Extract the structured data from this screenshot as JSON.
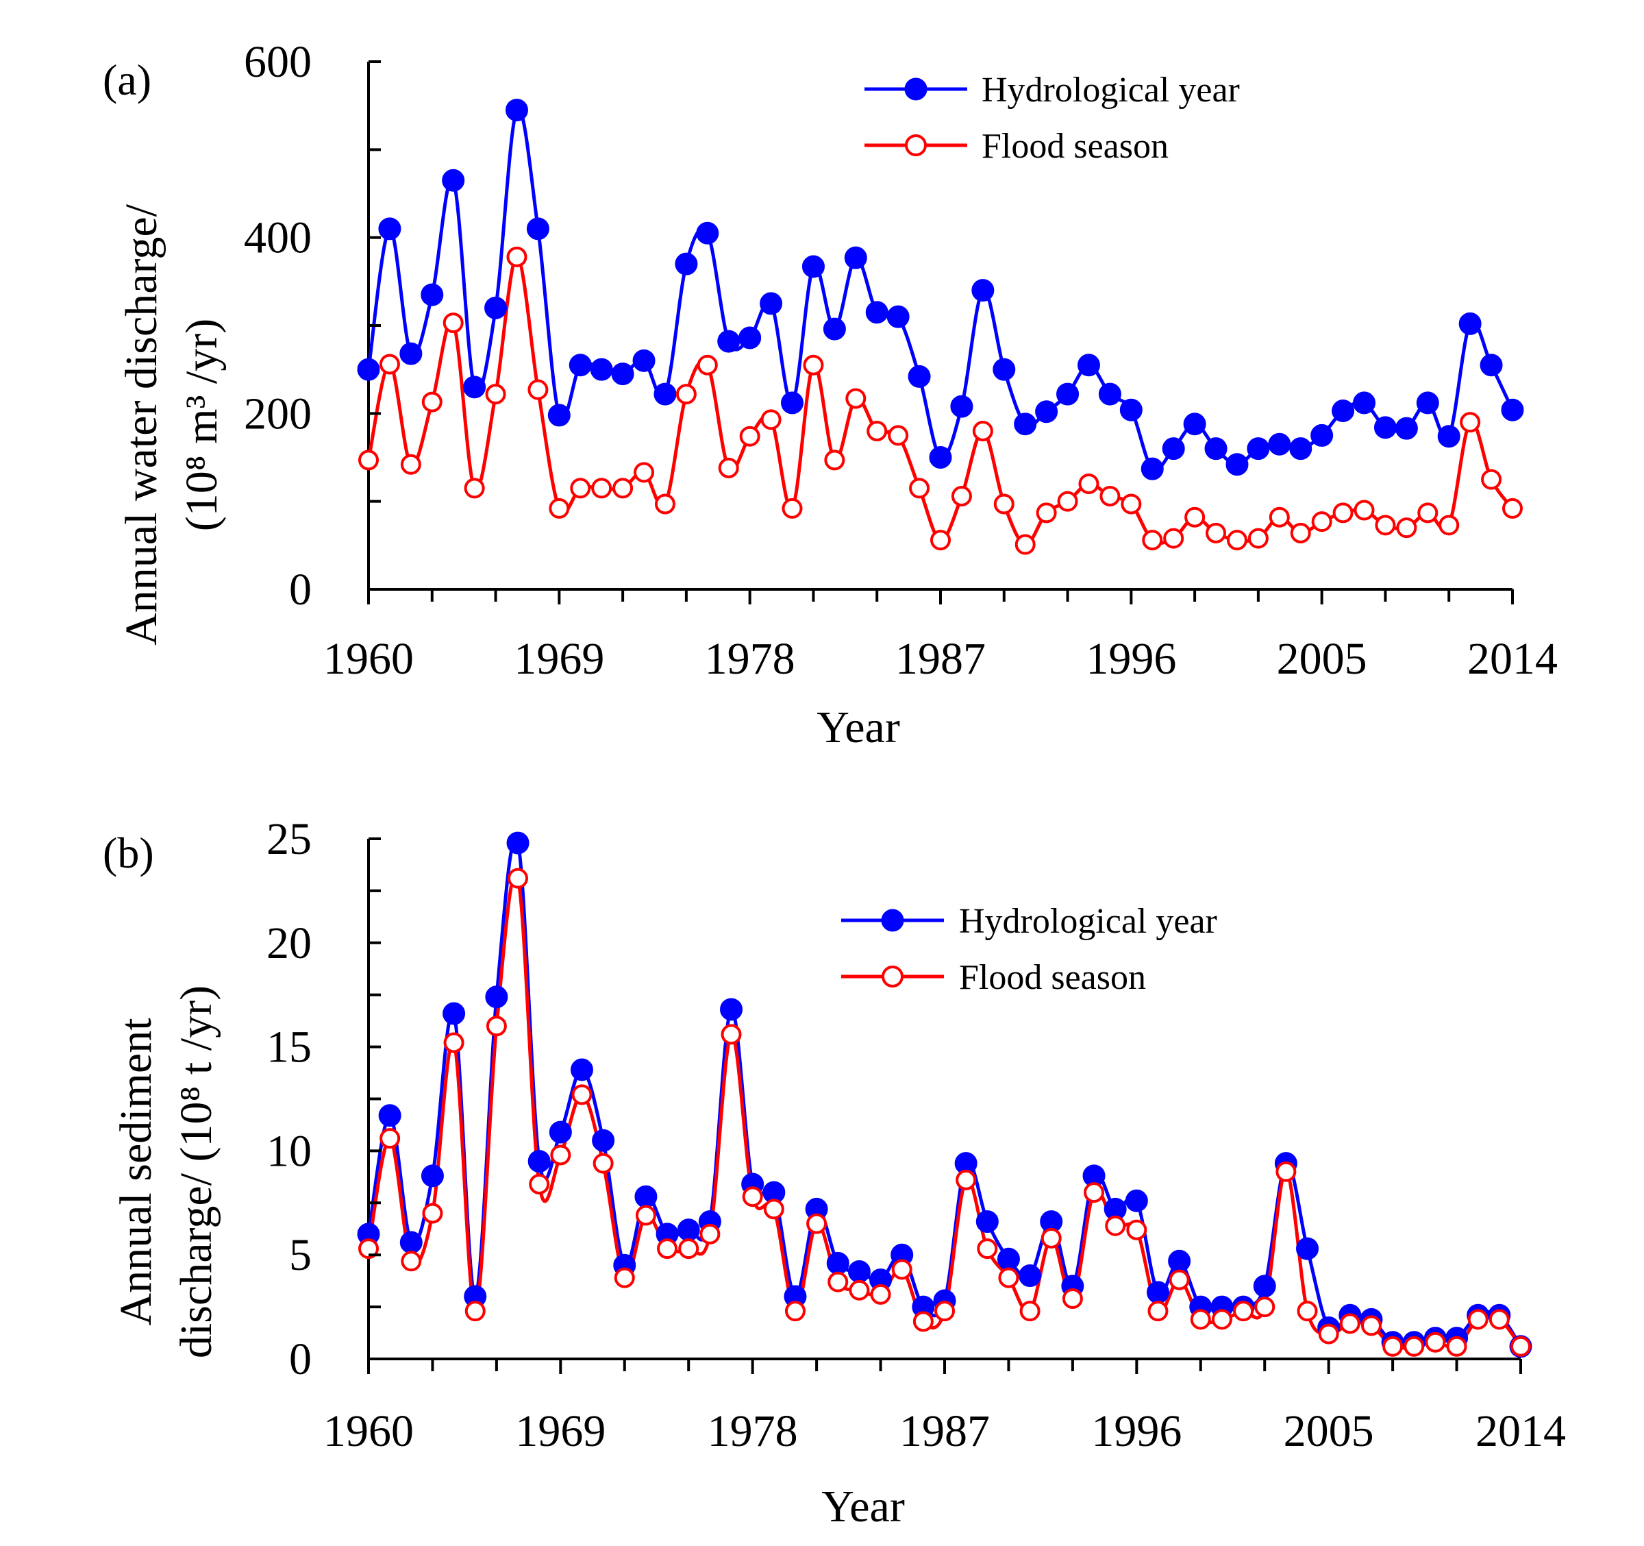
{
  "chart_data": [
    {
      "type": "line",
      "panel_label": "(a)",
      "title": "",
      "xlabel": "Year",
      "ylabel_line1": "Annual water discharge/",
      "ylabel_line2": "(10⁸ m³ /yr)",
      "ylim": [
        0,
        600
      ],
      "yticks": [
        0,
        200,
        400,
        600
      ],
      "xlim": [
        1960,
        2014
      ],
      "xticks": [
        1960,
        1969,
        1978,
        1987,
        1996,
        2005,
        2014
      ],
      "legend_position": "top-right",
      "x": [
        1960,
        1961,
        1962,
        1963,
        1964,
        1965,
        1966,
        1967,
        1968,
        1969,
        1970,
        1971,
        1972,
        1973,
        1974,
        1975,
        1976,
        1977,
        1978,
        1979,
        1980,
        1981,
        1982,
        1983,
        1984,
        1985,
        1986,
        1987,
        1988,
        1989,
        1990,
        1991,
        1992,
        1993,
        1994,
        1995,
        1996,
        1997,
        1998,
        1999,
        2000,
        2001,
        2002,
        2003,
        2004,
        2005,
        2006,
        2007,
        2008,
        2009,
        2010,
        2011,
        2012,
        2013,
        2014
      ],
      "series": [
        {
          "name": "Hydrological year",
          "color": "#0000ff",
          "marker": "filled-circle",
          "values": [
            250,
            410,
            268,
            335,
            465,
            230,
            320,
            545,
            410,
            198,
            255,
            250,
            245,
            260,
            222,
            370,
            405,
            282,
            286,
            325,
            212,
            367,
            296,
            377,
            315,
            310,
            242,
            150,
            208,
            340,
            250,
            188,
            202,
            222,
            255,
            222,
            204,
            137,
            160,
            188,
            160,
            142,
            160,
            165,
            160,
            175,
            203,
            212,
            184,
            183,
            212,
            174,
            302,
            255,
            204
          ]
        },
        {
          "name": "Flood season",
          "color": "#ff0000",
          "marker": "open-circle",
          "values": [
            147,
            256,
            142,
            213,
            303,
            115,
            222,
            378,
            227,
            92,
            115,
            115,
            115,
            133,
            97,
            222,
            255,
            138,
            174,
            193,
            92,
            255,
            147,
            217,
            180,
            175,
            115,
            56,
            106,
            180,
            97,
            51,
            87,
            100,
            120,
            106,
            97,
            56,
            58,
            82,
            64,
            56,
            58,
            82,
            64,
            77,
            87,
            90,
            73,
            70,
            87,
            73,
            190,
            125,
            92
          ]
        }
      ]
    },
    {
      "type": "line",
      "panel_label": "(b)",
      "title": "",
      "xlabel": "Year",
      "ylabel_line1": "Annual sediment",
      "ylabel_line2": "discharge/ (10⁸ t /yr)",
      "ylim": [
        0,
        25
      ],
      "yticks": [
        0,
        5,
        10,
        15,
        20,
        25
      ],
      "xlim": [
        1960,
        2014
      ],
      "xticks": [
        1960,
        1969,
        1978,
        1987,
        1996,
        2005,
        2014
      ],
      "legend_position": "top-right",
      "x": [
        1960,
        1961,
        1962,
        1963,
        1964,
        1965,
        1966,
        1967,
        1968,
        1969,
        1970,
        1971,
        1972,
        1973,
        1974,
        1975,
        1976,
        1977,
        1978,
        1979,
        1980,
        1981,
        1982,
        1983,
        1984,
        1985,
        1986,
        1987,
        1988,
        1989,
        1990,
        1991,
        1992,
        1993,
        1994,
        1995,
        1996,
        1997,
        1998,
        1999,
        2000,
        2001,
        2002,
        2003,
        2004,
        2005,
        2006,
        2007,
        2008,
        2009,
        2010,
        2011,
        2012,
        2013,
        2014
      ],
      "series": [
        {
          "name": "Hydrological year",
          "color": "#0000ff",
          "marker": "filled-circle",
          "values": [
            6.0,
            11.7,
            5.6,
            8.8,
            16.6,
            3.0,
            17.4,
            24.8,
            9.5,
            10.9,
            13.9,
            10.5,
            4.5,
            7.8,
            6.0,
            6.2,
            6.6,
            16.8,
            8.4,
            8.0,
            3.0,
            7.2,
            4.6,
            4.2,
            3.8,
            5.0,
            2.5,
            2.8,
            9.4,
            6.6,
            4.8,
            4.0,
            6.6,
            3.5,
            8.8,
            7.2,
            7.6,
            3.2,
            4.7,
            2.5,
            2.5,
            2.5,
            3.5,
            9.4,
            5.3,
            1.5,
            2.1,
            1.9,
            0.8,
            0.8,
            1.0,
            1.0,
            2.1,
            2.1,
            0.6
          ]
        },
        {
          "name": "Flood season",
          "color": "#ff0000",
          "marker": "open-circle",
          "values": [
            5.3,
            10.6,
            4.7,
            7.0,
            15.2,
            2.3,
            16.0,
            23.1,
            8.4,
            9.8,
            12.7,
            9.4,
            3.9,
            6.9,
            5.3,
            5.3,
            6.0,
            15.6,
            7.8,
            7.2,
            2.3,
            6.5,
            3.7,
            3.3,
            3.1,
            4.3,
            1.8,
            2.3,
            8.6,
            5.3,
            3.9,
            2.3,
            5.8,
            2.9,
            8.0,
            6.4,
            6.2,
            2.3,
            3.8,
            1.9,
            1.9,
            2.3,
            2.5,
            9.0,
            2.3,
            1.2,
            1.7,
            1.6,
            0.6,
            0.6,
            0.8,
            0.6,
            1.9,
            1.9,
            0.6
          ]
        }
      ]
    }
  ]
}
